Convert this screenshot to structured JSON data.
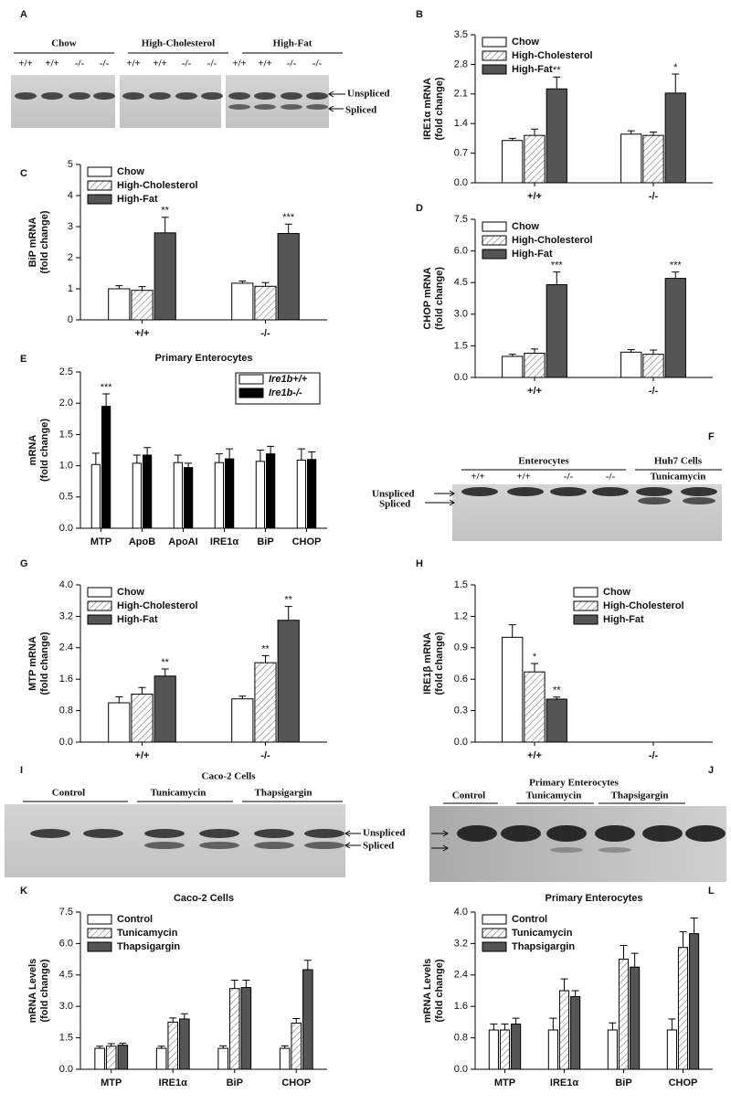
{
  "chart_data": [
    {
      "type": "bar",
      "panel": "B",
      "ylabel": [
        "IRE1α mRNA",
        "(fold change)"
      ],
      "categories": [
        "+/+",
        "-/-"
      ],
      "series": [
        {
          "name": "Chow",
          "color": "#ffffff",
          "values": [
            1.0,
            1.15
          ],
          "errors": [
            0.05,
            0.08
          ]
        },
        {
          "name": "High-Cholesterol",
          "color": "#ffffff",
          "pattern": "hatch",
          "values": [
            1.12,
            1.12
          ],
          "errors": [
            0.15,
            0.08
          ]
        },
        {
          "name": "High-Fat",
          "color": "#555555",
          "values": [
            2.22,
            2.12
          ],
          "errors": [
            0.28,
            0.45
          ],
          "significance": [
            "**",
            "*"
          ]
        }
      ],
      "ylim": [
        0,
        3.5
      ],
      "yticks": [
        {
          "value": 0,
          "label": "0.0"
        },
        0.7,
        1.4,
        2.1,
        2.8,
        3.5
      ],
      "legend": "upper left"
    },
    {
      "type": "bar",
      "panel": "C",
      "ylabel": [
        "BiP mRNA",
        "(fold change)"
      ],
      "categories": [
        "+/+",
        "-/-"
      ],
      "series": [
        {
          "name": "Chow",
          "color": "#ffffff",
          "values": [
            1.0,
            1.18
          ],
          "errors": [
            0.1,
            0.07
          ]
        },
        {
          "name": "High-Cholesterol",
          "color": "#ffffff",
          "pattern": "hatch",
          "values": [
            0.95,
            1.08
          ],
          "errors": [
            0.12,
            0.12
          ]
        },
        {
          "name": "High-Fat",
          "color": "#555555",
          "values": [
            2.8,
            2.78
          ],
          "errors": [
            0.5,
            0.3
          ],
          "significance": [
            "**",
            "***"
          ]
        }
      ],
      "ylim": [
        0,
        5
      ],
      "yticks": [
        0,
        1,
        2,
        3,
        4,
        5
      ],
      "legend": "upper left"
    },
    {
      "type": "bar",
      "panel": "D",
      "ylabel": [
        "CHOP mRNA",
        "(fold change)"
      ],
      "categories": [
        "+/+",
        "-/-"
      ],
      "series": [
        {
          "name": "Chow",
          "color": "#ffffff",
          "values": [
            1.0,
            1.2
          ],
          "errors": [
            0.1,
            0.12
          ]
        },
        {
          "name": "High-Cholesterol",
          "color": "#ffffff",
          "pattern": "hatch",
          "values": [
            1.15,
            1.1
          ],
          "errors": [
            0.2,
            0.2
          ]
        },
        {
          "name": "High-Fat",
          "color": "#555555",
          "values": [
            4.4,
            4.7
          ],
          "errors": [
            0.6,
            0.3
          ],
          "significance": [
            "***",
            "***"
          ]
        }
      ],
      "ylim": [
        0,
        7.5
      ],
      "yticks": [
        {
          "value": 0,
          "label": "0.0"
        },
        1.5,
        {
          "value": 3,
          "label": "3.0"
        },
        4.5,
        {
          "value": 6,
          "label": "6.0"
        },
        7.5
      ],
      "legend": "upper left"
    },
    {
      "type": "bar",
      "panel": "E",
      "title": "Primary Enterocytes",
      "ylabel": [
        "mRNA",
        "(fold change)"
      ],
      "categories": [
        "MTP",
        "ApoB",
        "ApoAI",
        "IRE1α",
        "BiP",
        "CHOP"
      ],
      "series": [
        {
          "name": "Ire1b+/+",
          "color": "#ffffff",
          "values": [
            1.02,
            1.04,
            1.05,
            1.05,
            1.07,
            1.09
          ],
          "errors": [
            0.18,
            0.13,
            0.12,
            0.14,
            0.18,
            0.18
          ]
        },
        {
          "name": "Ire1b-/-",
          "color": "#000000",
          "values": [
            1.95,
            1.17,
            0.97,
            1.11,
            1.19,
            1.1
          ],
          "errors": [
            0.2,
            0.12,
            0.07,
            0.16,
            0.12,
            0.12
          ],
          "significance": [
            "***",
            null,
            null,
            null,
            null,
            null
          ]
        }
      ],
      "ylim": [
        0,
        2.5
      ],
      "yticks": [
        {
          "value": 0,
          "label": "0.0"
        },
        0.5,
        {
          "value": 1,
          "label": "1.0"
        },
        1.5,
        {
          "value": 2,
          "label": "2.0"
        },
        2.5
      ],
      "legend": "upper right"
    },
    {
      "type": "bar",
      "panel": "G",
      "ylabel": [
        "MTP mRNA",
        "(fold change)"
      ],
      "categories": [
        "+/+",
        "-/-"
      ],
      "series": [
        {
          "name": "Chow",
          "color": "#ffffff",
          "values": [
            1.0,
            1.1
          ],
          "errors": [
            0.15,
            0.07
          ]
        },
        {
          "name": "High-Cholesterol",
          "color": "#ffffff",
          "pattern": "hatch",
          "values": [
            1.22,
            2.02
          ],
          "errors": [
            0.17,
            0.18
          ],
          "significance": [
            null,
            "**"
          ]
        },
        {
          "name": "High-Fat",
          "color": "#555555",
          "values": [
            1.68,
            3.1
          ],
          "errors": [
            0.18,
            0.35
          ],
          "significance": [
            "**",
            "**"
          ]
        }
      ],
      "ylim": [
        0,
        4
      ],
      "yticks": [
        {
          "value": 0,
          "label": "0.0"
        },
        0.8,
        1.6,
        2.4,
        3.2,
        {
          "value": 4,
          "label": "4.0"
        }
      ],
      "legend": "upper left"
    },
    {
      "type": "bar",
      "panel": "H",
      "ylabel": [
        "IRE1β mRNA",
        "(fold change)"
      ],
      "categories": [
        "+/+",
        "-/-"
      ],
      "series": [
        {
          "name": "Chow",
          "color": "#ffffff",
          "values": [
            1.0,
            null
          ],
          "errors": [
            0.12,
            null
          ]
        },
        {
          "name": "High-Cholesterol",
          "color": "#ffffff",
          "pattern": "hatch",
          "values": [
            0.67,
            null
          ],
          "errors": [
            0.08,
            null
          ],
          "significance": [
            "*",
            null
          ]
        },
        {
          "name": "High-Fat",
          "color": "#555555",
          "values": [
            0.41,
            null
          ],
          "errors": [
            0.02,
            null
          ],
          "significance": [
            "**",
            null
          ]
        }
      ],
      "ylim": [
        0,
        1.5
      ],
      "yticks": [
        {
          "value": 0,
          "label": "0.0"
        },
        0.3,
        0.6,
        0.9,
        1.2,
        1.5
      ],
      "legend": "upper right"
    },
    {
      "type": "bar",
      "panel": "K",
      "title": "Caco-2 Cells",
      "ylabel": [
        "mRNA Levels",
        "(fold change)"
      ],
      "categories": [
        "MTP",
        "IRE1α",
        "BiP",
        "CHOP"
      ],
      "series": [
        {
          "name": "Control",
          "color": "#ffffff",
          "values": [
            1.0,
            1.0,
            1.0,
            1.0
          ],
          "errors": [
            0.1,
            0.1,
            0.12,
            0.12
          ]
        },
        {
          "name": "Tunicamycin",
          "color": "#ffffff",
          "pattern": "hatch",
          "values": [
            1.1,
            2.25,
            3.85,
            2.2
          ],
          "errors": [
            0.12,
            0.2,
            0.4,
            0.22
          ]
        },
        {
          "name": "Thapsigargin",
          "color": "#555555",
          "values": [
            1.15,
            2.4,
            3.9,
            4.75
          ],
          "errors": [
            0.1,
            0.25,
            0.35,
            0.45
          ]
        }
      ],
      "ylim": [
        0,
        7.5
      ],
      "yticks": [
        {
          "value": 0,
          "label": "0.0"
        },
        1.5,
        {
          "value": 3,
          "label": "3.0"
        },
        4.5,
        {
          "value": 6,
          "label": "6.0"
        },
        7.5
      ],
      "legend": "upper left"
    },
    {
      "type": "bar",
      "panel": "L",
      "title": "Primary Enterocytes",
      "ylabel": [
        "mRNA Levels",
        "(fold change)"
      ],
      "categories": [
        "MTP",
        "IRE1α",
        "BiP",
        "CHOP"
      ],
      "series": [
        {
          "name": "Control",
          "color": "#ffffff",
          "values": [
            1.0,
            1.0,
            1.0,
            1.0
          ],
          "errors": [
            0.15,
            0.3,
            0.18,
            0.28
          ]
        },
        {
          "name": "Tunicamycin",
          "color": "#ffffff",
          "pattern": "hatch",
          "values": [
            1.0,
            2.0,
            2.8,
            3.1
          ],
          "errors": [
            0.15,
            0.3,
            0.35,
            0.4
          ]
        },
        {
          "name": "Thapsigargin",
          "color": "#555555",
          "values": [
            1.15,
            1.85,
            2.6,
            3.45
          ],
          "errors": [
            0.15,
            0.15,
            0.35,
            0.4
          ]
        }
      ],
      "ylim": [
        0,
        4
      ],
      "yticks": [
        {
          "value": 0,
          "label": "0.0"
        },
        0.8,
        1.6,
        2.4,
        3.2,
        {
          "value": 4,
          "label": "4.0"
        }
      ],
      "legend": "upper left"
    }
  ],
  "gels": [
    {
      "panel": "A",
      "groups": [
        "Chow",
        "High-Cholesterol",
        "High-Fat"
      ],
      "lanes": [
        "+/+",
        "+/+",
        "-/-",
        "-/-",
        "+/+",
        "+/+",
        "-/-",
        "-/-",
        "+/+",
        "+/+",
        "-/-",
        "-/-"
      ],
      "band_labels": [
        "Unspliced",
        "Spliced"
      ]
    },
    {
      "panel": "F",
      "groups": [
        "Enterocytes",
        "Huh7 Cells"
      ],
      "lanes": [
        "+/+",
        "+/+",
        "-/-",
        "-/-",
        "Tunicamycin"
      ],
      "band_labels": [
        "Unspliced",
        "Spliced"
      ]
    },
    {
      "panel": "I",
      "title": "Caco-2 Cells",
      "groups": [
        "Control",
        "Tunicamycin",
        "Thapsigargin"
      ],
      "band_labels": [
        "Unspliced",
        "Spliced"
      ]
    },
    {
      "panel": "J",
      "title": "Primary Enterocytes",
      "groups": [
        "Control",
        "Tunicamycin",
        "Thapsigargin"
      ]
    }
  ]
}
